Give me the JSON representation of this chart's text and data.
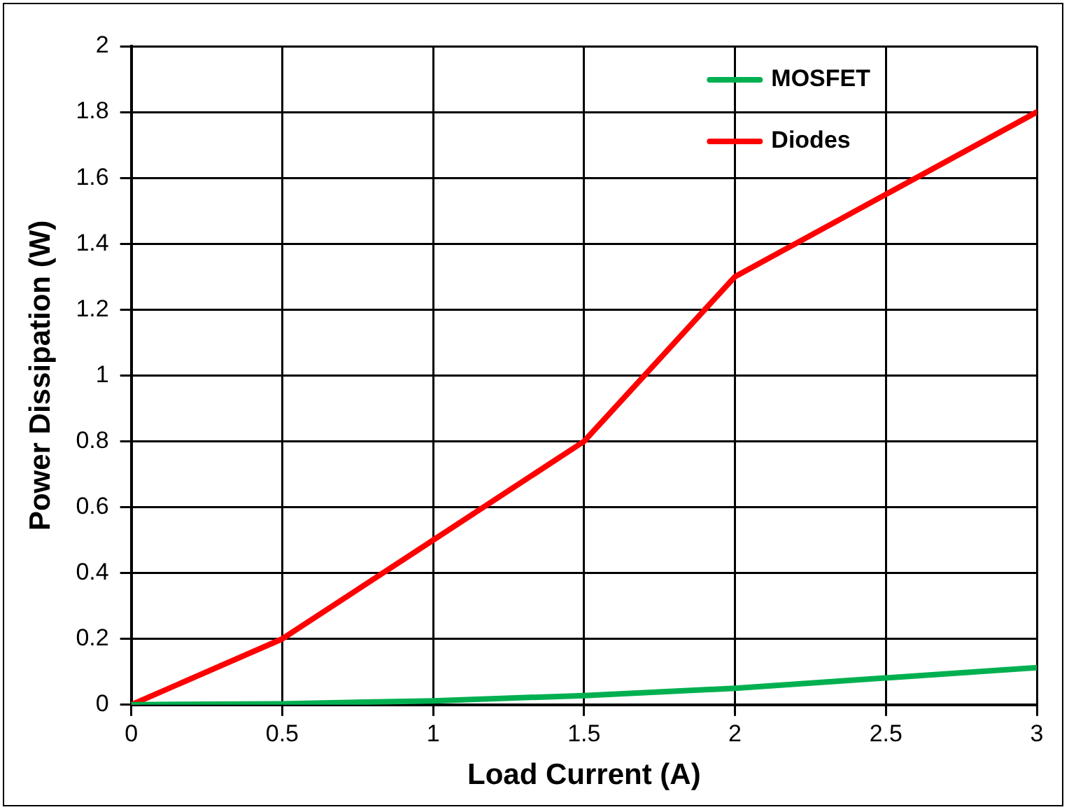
{
  "chart_data": {
    "type": "line",
    "xlabel": "Load Current (A)",
    "ylabel": "Power Dissipation (W)",
    "series": [
      {
        "name": "MOSFET",
        "color": "#00b050",
        "x": [
          0,
          0.5,
          1,
          1.5,
          2,
          3
        ],
        "values": [
          0,
          0.003,
          0.012,
          0.028,
          0.05,
          0.113
        ]
      },
      {
        "name": "Diodes",
        "color": "#ff0000",
        "x": [
          0,
          0.5,
          1,
          1.5,
          2,
          3
        ],
        "values": [
          0,
          0.2,
          0.5,
          0.8,
          1.3,
          1.8
        ]
      }
    ],
    "xlim": [
      0,
      3
    ],
    "xticks": [
      0,
      0.5,
      1,
      1.5,
      2,
      2.5,
      3
    ],
    "ylim": [
      0,
      2
    ],
    "yticks": [
      0,
      0.2,
      0.4,
      0.6,
      0.8,
      1,
      1.2,
      1.4,
      1.6,
      1.8,
      2
    ],
    "grid": true,
    "legend": "top right",
    "marker": "none",
    "line_style": "solid"
  }
}
